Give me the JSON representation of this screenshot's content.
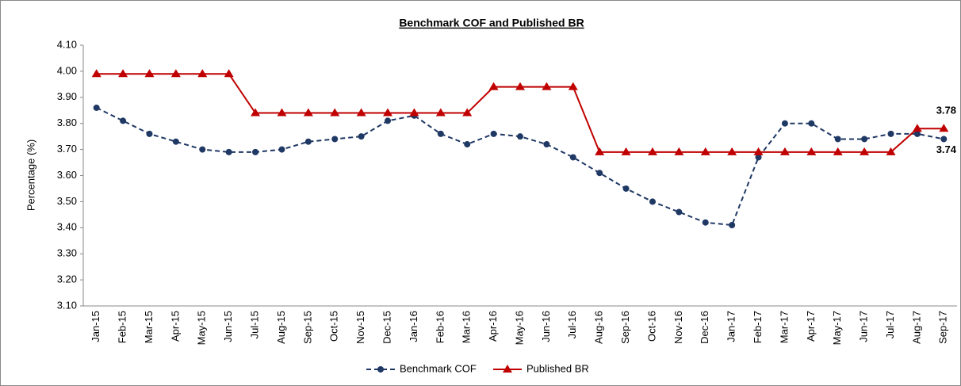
{
  "chart_data": {
    "type": "line",
    "title": "Benchmark COF and Published BR",
    "y_label": "Percentage (%)",
    "categories": [
      "Jan-15",
      "Feb-15",
      "Mar-15",
      "Apr-15",
      "May-15",
      "Jun-15",
      "Jul-15",
      "Aug-15",
      "Sep-15",
      "Oct-15",
      "Nov-15",
      "Dec-15",
      "Jan-16",
      "Feb-16",
      "Mar-16",
      "Apr-16",
      "May-16",
      "Jun-16",
      "Jul-16",
      "Aug-16",
      "Sep-16",
      "Oct-16",
      "Nov-16",
      "Dec-16",
      "Jan-17",
      "Feb-17",
      "Mar-17",
      "Apr-17",
      "May-17",
      "Jun-17",
      "Jul-17",
      "Aug-17",
      "Sep-17"
    ],
    "series": [
      {
        "name": "Benchmark COF",
        "color": "#1f3864",
        "dash": true,
        "marker": "circle",
        "values": [
          3.86,
          3.81,
          3.76,
          3.73,
          3.7,
          3.69,
          3.69,
          3.7,
          3.73,
          3.74,
          3.75,
          3.81,
          3.83,
          3.76,
          3.72,
          3.76,
          3.75,
          3.72,
          3.67,
          3.61,
          3.55,
          3.5,
          3.46,
          3.42,
          3.41,
          3.67,
          3.8,
          3.8,
          3.74,
          3.74,
          3.76,
          3.76,
          3.74
        ]
      },
      {
        "name": "Published BR",
        "color": "#c00000",
        "dash": false,
        "marker": "triangle",
        "values": [
          3.99,
          3.99,
          3.99,
          3.99,
          3.99,
          3.99,
          3.84,
          3.84,
          3.84,
          3.84,
          3.84,
          3.84,
          3.84,
          3.84,
          3.84,
          3.94,
          3.94,
          3.94,
          3.94,
          3.69,
          3.69,
          3.69,
          3.69,
          3.69,
          3.69,
          3.69,
          3.69,
          3.69,
          3.69,
          3.69,
          3.69,
          3.78,
          3.78
        ]
      }
    ],
    "ylim": [
      3.1,
      4.1
    ],
    "yticks": [
      {
        "value": 3.1,
        "label": "3.10"
      },
      {
        "value": 3.2,
        "label": "3.20"
      },
      {
        "value": 3.3,
        "label": "3.30"
      },
      {
        "value": 3.4,
        "label": "3.40"
      },
      {
        "value": 3.5,
        "label": "3.50"
      },
      {
        "value": 3.6,
        "label": "3.60"
      },
      {
        "value": 3.7,
        "label": "3.70"
      },
      {
        "value": 3.8,
        "label": "3.80"
      },
      {
        "value": 3.9,
        "label": "3.90"
      },
      {
        "value": 4.0,
        "label": "4.00"
      },
      {
        "value": 4.1,
        "label": "4.10"
      }
    ],
    "grid": false,
    "legend": "bottom"
  }
}
